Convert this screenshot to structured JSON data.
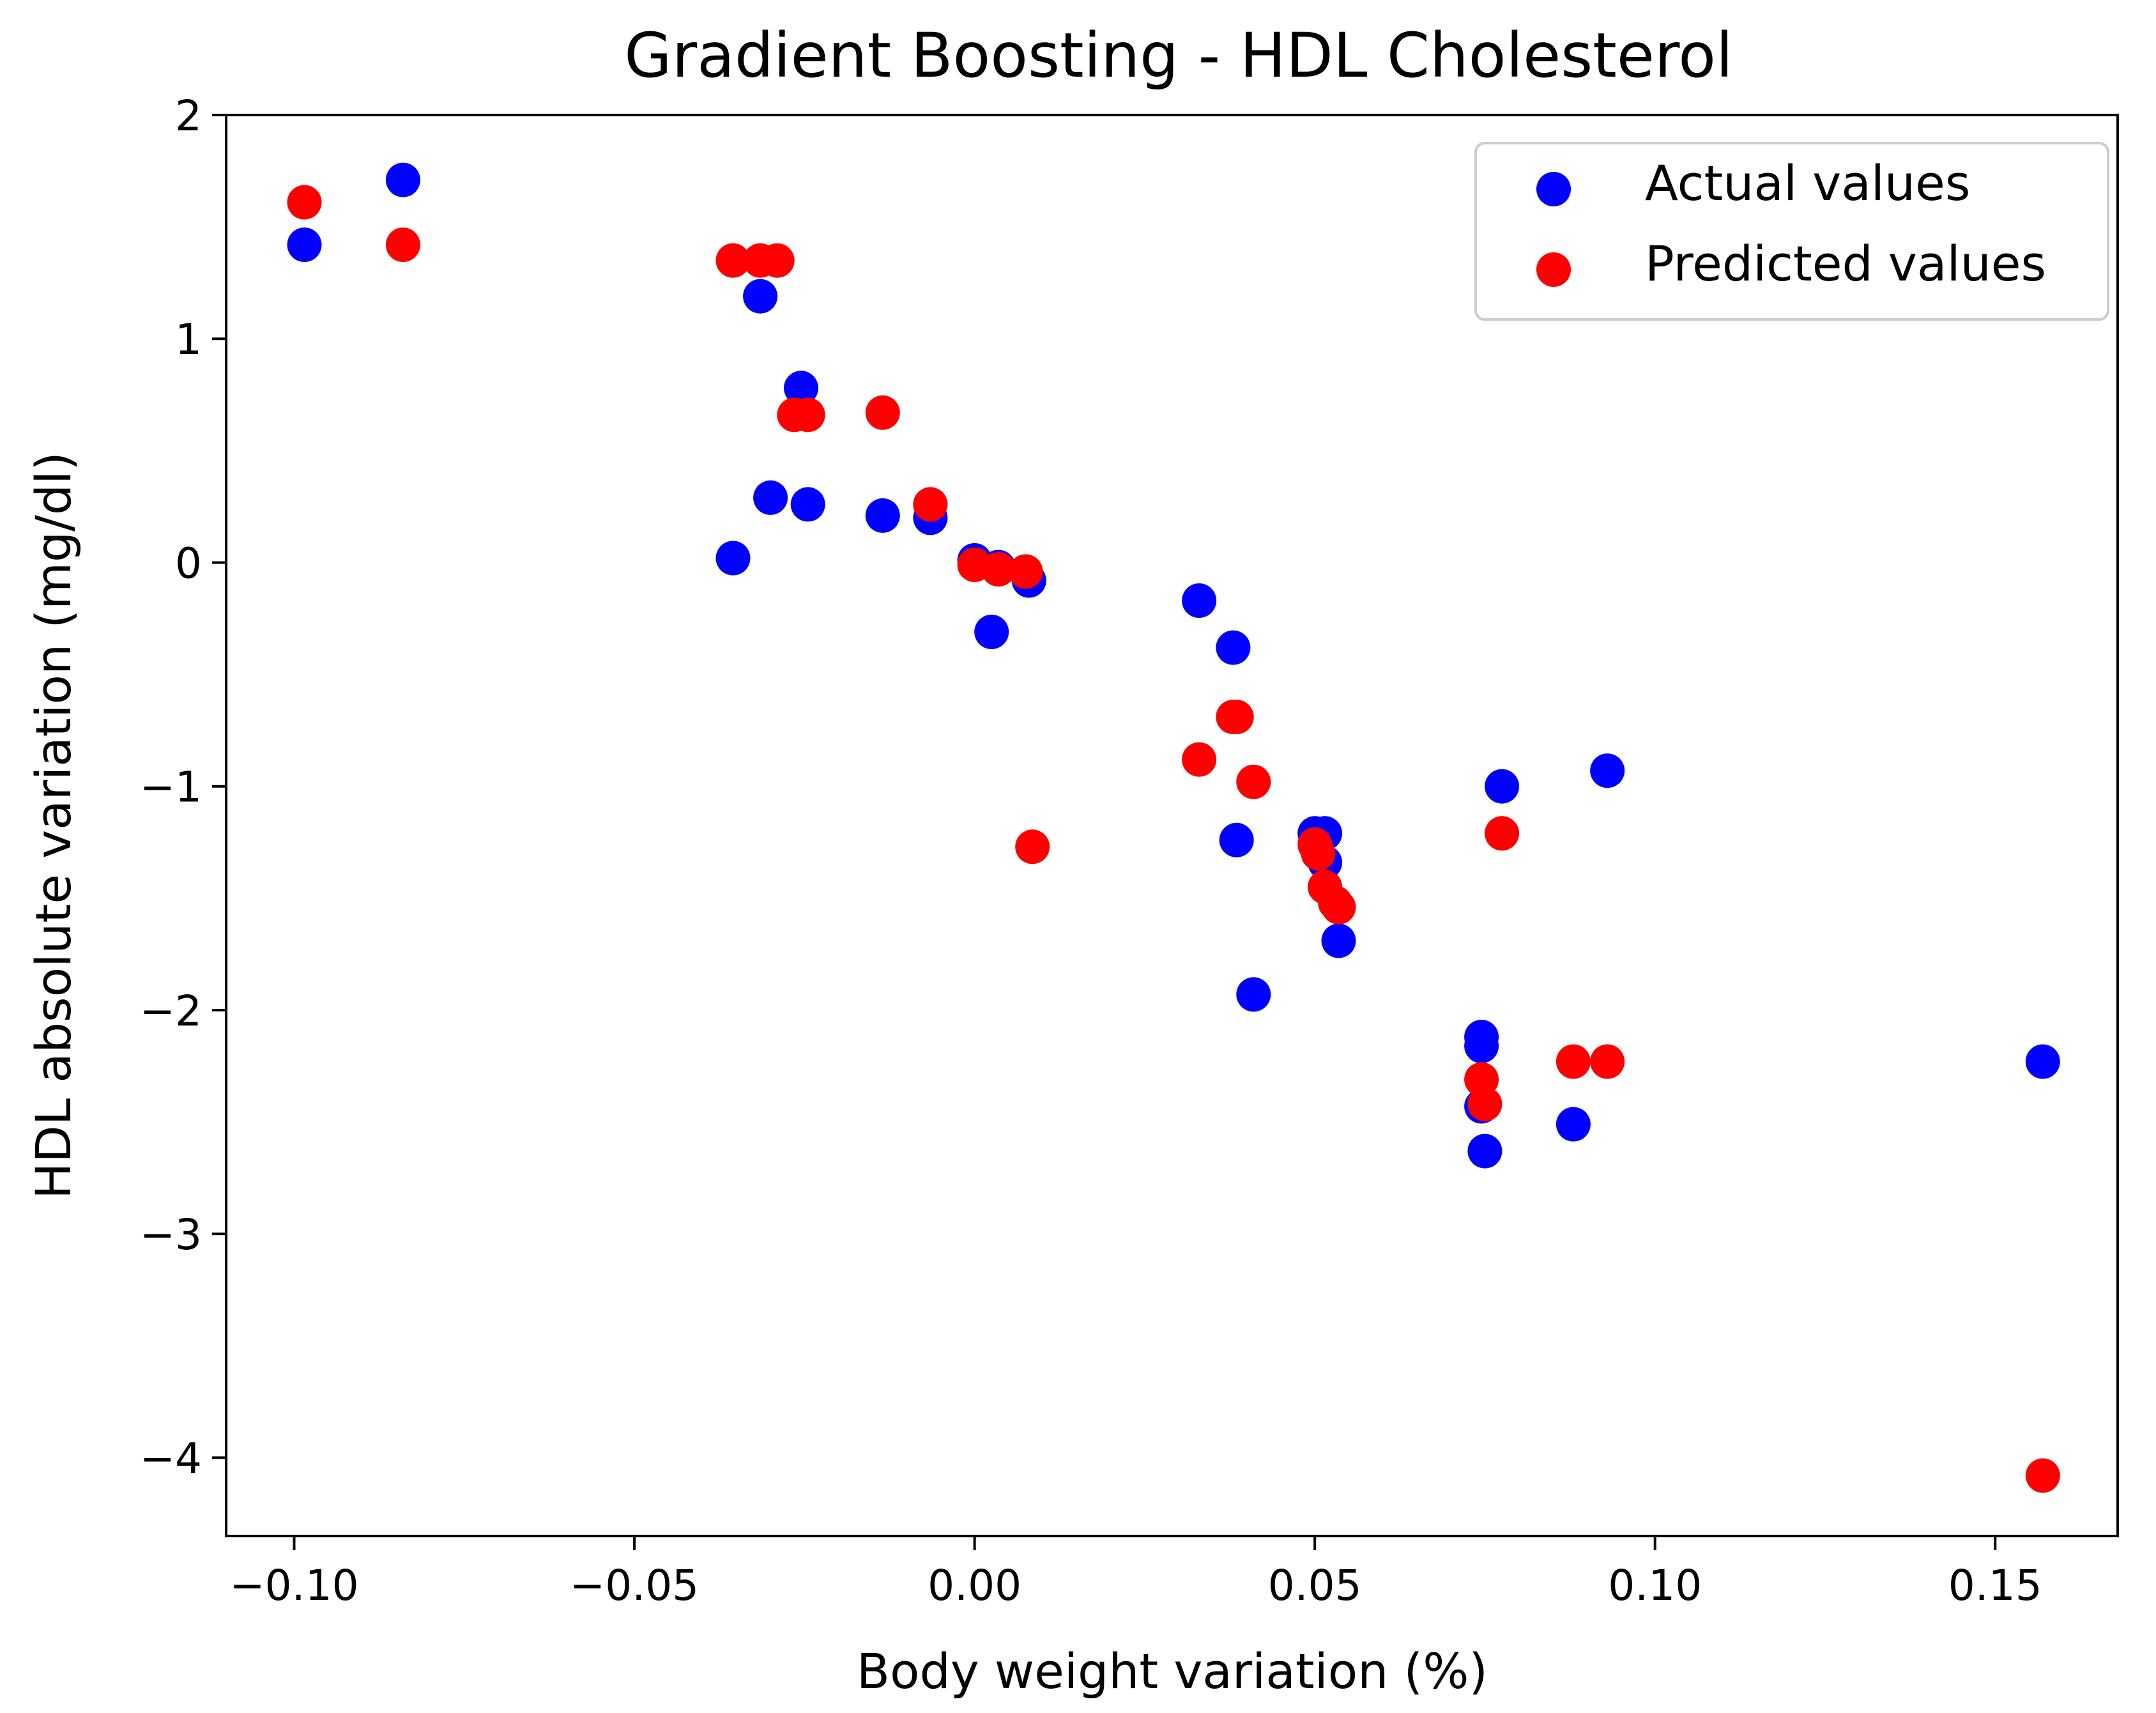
{
  "chart_data": {
    "type": "scatter",
    "title": "Gradient Boosting - HDL Cholesterol",
    "xlabel": "Body weight variation (%)",
    "ylabel": "HDL absolute variation (mg/dl)",
    "xlim": [
      -0.11,
      0.168
    ],
    "ylim": [
      -4.35,
      2.0
    ],
    "xticks": [
      -0.1,
      -0.05,
      0.0,
      0.05,
      0.1,
      0.15
    ],
    "xtick_labels": [
      "−0.10",
      "−0.05",
      "0.00",
      "0.05",
      "0.10",
      "0.15"
    ],
    "yticks": [
      2,
      1,
      0,
      -1,
      -2,
      -3,
      -4
    ],
    "ytick_labels": [
      "2",
      "1",
      "0",
      "−1",
      "−2",
      "−3",
      "−4"
    ],
    "grid": false,
    "legend_position": "top-right",
    "series": [
      {
        "name": "Actual values",
        "color": "#0000ff",
        "points": [
          [
            -0.0985,
            1.42
          ],
          [
            -0.084,
            1.71
          ],
          [
            -0.0355,
            0.02
          ],
          [
            -0.0315,
            1.19
          ],
          [
            -0.03,
            0.29
          ],
          [
            -0.0255,
            0.78
          ],
          [
            -0.0245,
            0.26
          ],
          [
            -0.0135,
            0.21
          ],
          [
            -0.0065,
            0.2
          ],
          [
            0.0,
            0.01
          ],
          [
            0.0025,
            -0.31
          ],
          [
            0.0035,
            -0.02
          ],
          [
            0.008,
            -0.08
          ],
          [
            0.033,
            -0.17
          ],
          [
            0.038,
            -0.38
          ],
          [
            0.0385,
            -1.24
          ],
          [
            0.041,
            -1.93
          ],
          [
            0.05,
            -1.21
          ],
          [
            0.0515,
            -1.21
          ],
          [
            0.0515,
            -1.34
          ],
          [
            0.0535,
            -1.69
          ],
          [
            0.0745,
            -2.12
          ],
          [
            0.0745,
            -2.16
          ],
          [
            0.0745,
            -2.43
          ],
          [
            0.075,
            -2.63
          ],
          [
            0.0775,
            -1.0
          ],
          [
            0.088,
            -2.51
          ],
          [
            0.093,
            -0.93
          ],
          [
            0.157,
            -2.23
          ]
        ]
      },
      {
        "name": "Predicted values",
        "color": "#ff0000",
        "points": [
          [
            -0.0985,
            1.61
          ],
          [
            -0.084,
            1.42
          ],
          [
            -0.0355,
            1.35
          ],
          [
            -0.0315,
            1.35
          ],
          [
            -0.029,
            1.35
          ],
          [
            -0.0265,
            0.66
          ],
          [
            -0.0245,
            0.66
          ],
          [
            -0.0135,
            0.67
          ],
          [
            -0.0065,
            0.26
          ],
          [
            0.0,
            -0.01
          ],
          [
            0.0035,
            -0.03
          ],
          [
            0.0075,
            -0.04
          ],
          [
            0.0085,
            -1.27
          ],
          [
            0.033,
            -0.88
          ],
          [
            0.038,
            -0.69
          ],
          [
            0.0385,
            -0.69
          ],
          [
            0.041,
            -0.98
          ],
          [
            0.05,
            -1.26
          ],
          [
            0.0505,
            -1.3
          ],
          [
            0.0515,
            -1.45
          ],
          [
            0.053,
            -1.52
          ],
          [
            0.0535,
            -1.54
          ],
          [
            0.0745,
            -2.31
          ],
          [
            0.075,
            -2.42
          ],
          [
            0.0775,
            -1.21
          ],
          [
            0.088,
            -2.23
          ],
          [
            0.093,
            -2.23
          ],
          [
            0.157,
            -4.08
          ]
        ]
      }
    ]
  }
}
